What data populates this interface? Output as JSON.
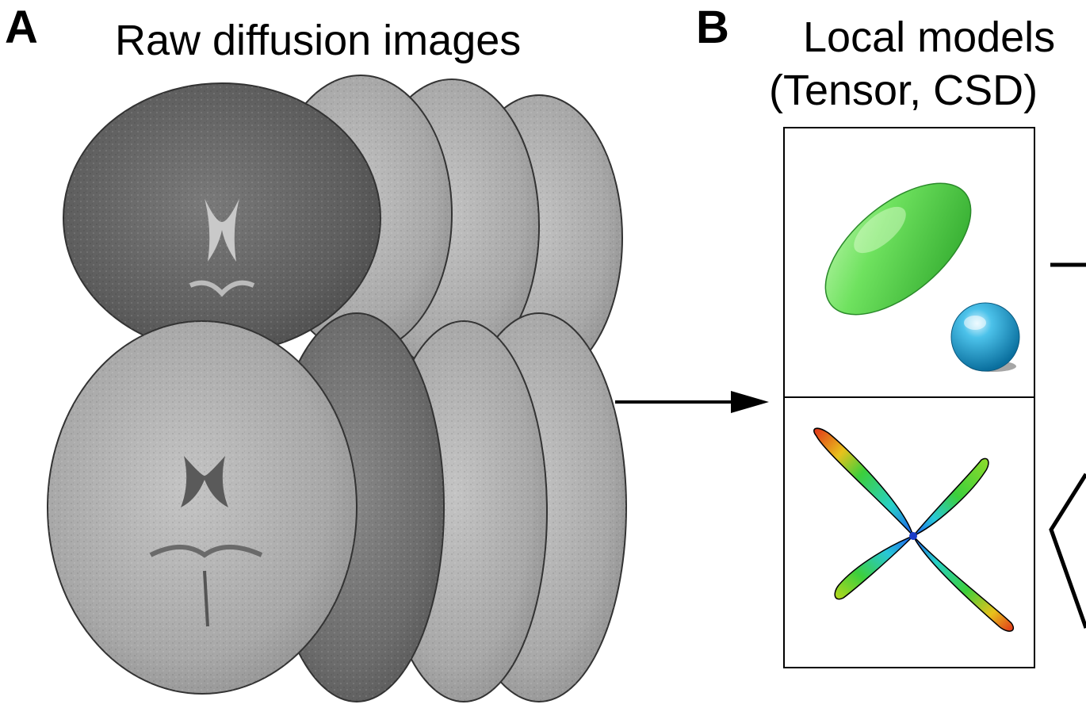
{
  "panel_a": {
    "letter": "A",
    "title": "Raw diffusion images"
  },
  "panel_b": {
    "letter": "B",
    "title_line1": "Local models",
    "title_line2": "(Tensor, CSD)"
  },
  "colors": {
    "tensor_ellipsoid": "#5fdc55",
    "sphere": "#2aa0d0",
    "csd_red": "#e23a1a",
    "csd_green": "#3ccf3c",
    "csd_blue": "#2a7cf0",
    "brain_light": "#bdbdbd",
    "brain_dark": "#6e6e6e"
  },
  "icons": [
    "arrow-right-icon"
  ]
}
